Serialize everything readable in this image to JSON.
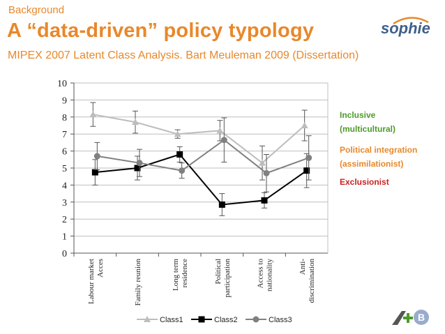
{
  "header": {
    "kicker": "Background",
    "title": "A “data-driven” policy typology",
    "subtitle": "MIPEX 2007 Latent Class Analysis. Bart Meuleman 2009 (Dissertation)"
  },
  "logo": {
    "text": "sophie"
  },
  "side_labels": {
    "inclusive": "Inclusive\n(multicultural)",
    "political": "Political integration\n(assimilationist)",
    "exclusionist": "Exclusionist"
  },
  "colors": {
    "accent": "#e8882a",
    "inclusive": "#4d9a2a",
    "exclusionist": "#cc1f1f",
    "class1": "#bdbdbd",
    "class2": "#000000",
    "class3": "#808080"
  },
  "chart_data": {
    "type": "line",
    "categories": [
      [
        "Labour market",
        "Acces"
      ],
      [
        "Family reunion"
      ],
      [
        "Long term",
        "residence"
      ],
      [
        "Political",
        "participation"
      ],
      [
        "Access to",
        "nationality"
      ],
      [
        "Anti-",
        "discrimination"
      ]
    ],
    "ylim": [
      0,
      10
    ],
    "yticks": [
      "0",
      "1",
      "2",
      "3",
      "4",
      "5",
      "6",
      "7",
      "8",
      "9",
      "10"
    ],
    "grid": true,
    "legend_position": "bottom",
    "series": [
      {
        "name": "Class1",
        "marker": "triangle",
        "values": [
          8.15,
          7.7,
          7.0,
          7.2,
          5.3,
          7.5
        ],
        "err": [
          0.7,
          0.65,
          0.25,
          0.6,
          1.0,
          0.9
        ]
      },
      {
        "name": "Class2",
        "marker": "square",
        "values": [
          4.75,
          5.0,
          5.8,
          2.85,
          3.1,
          4.85
        ],
        "err": [
          0.75,
          0.7,
          0.45,
          0.65,
          0.45,
          1.0
        ]
      },
      {
        "name": "Class3",
        "marker": "circle",
        "values": [
          5.7,
          5.3,
          4.85,
          6.65,
          4.7,
          5.6
        ],
        "err": [
          0.8,
          0.8,
          0.45,
          1.3,
          1.1,
          1.3
        ]
      }
    ]
  }
}
